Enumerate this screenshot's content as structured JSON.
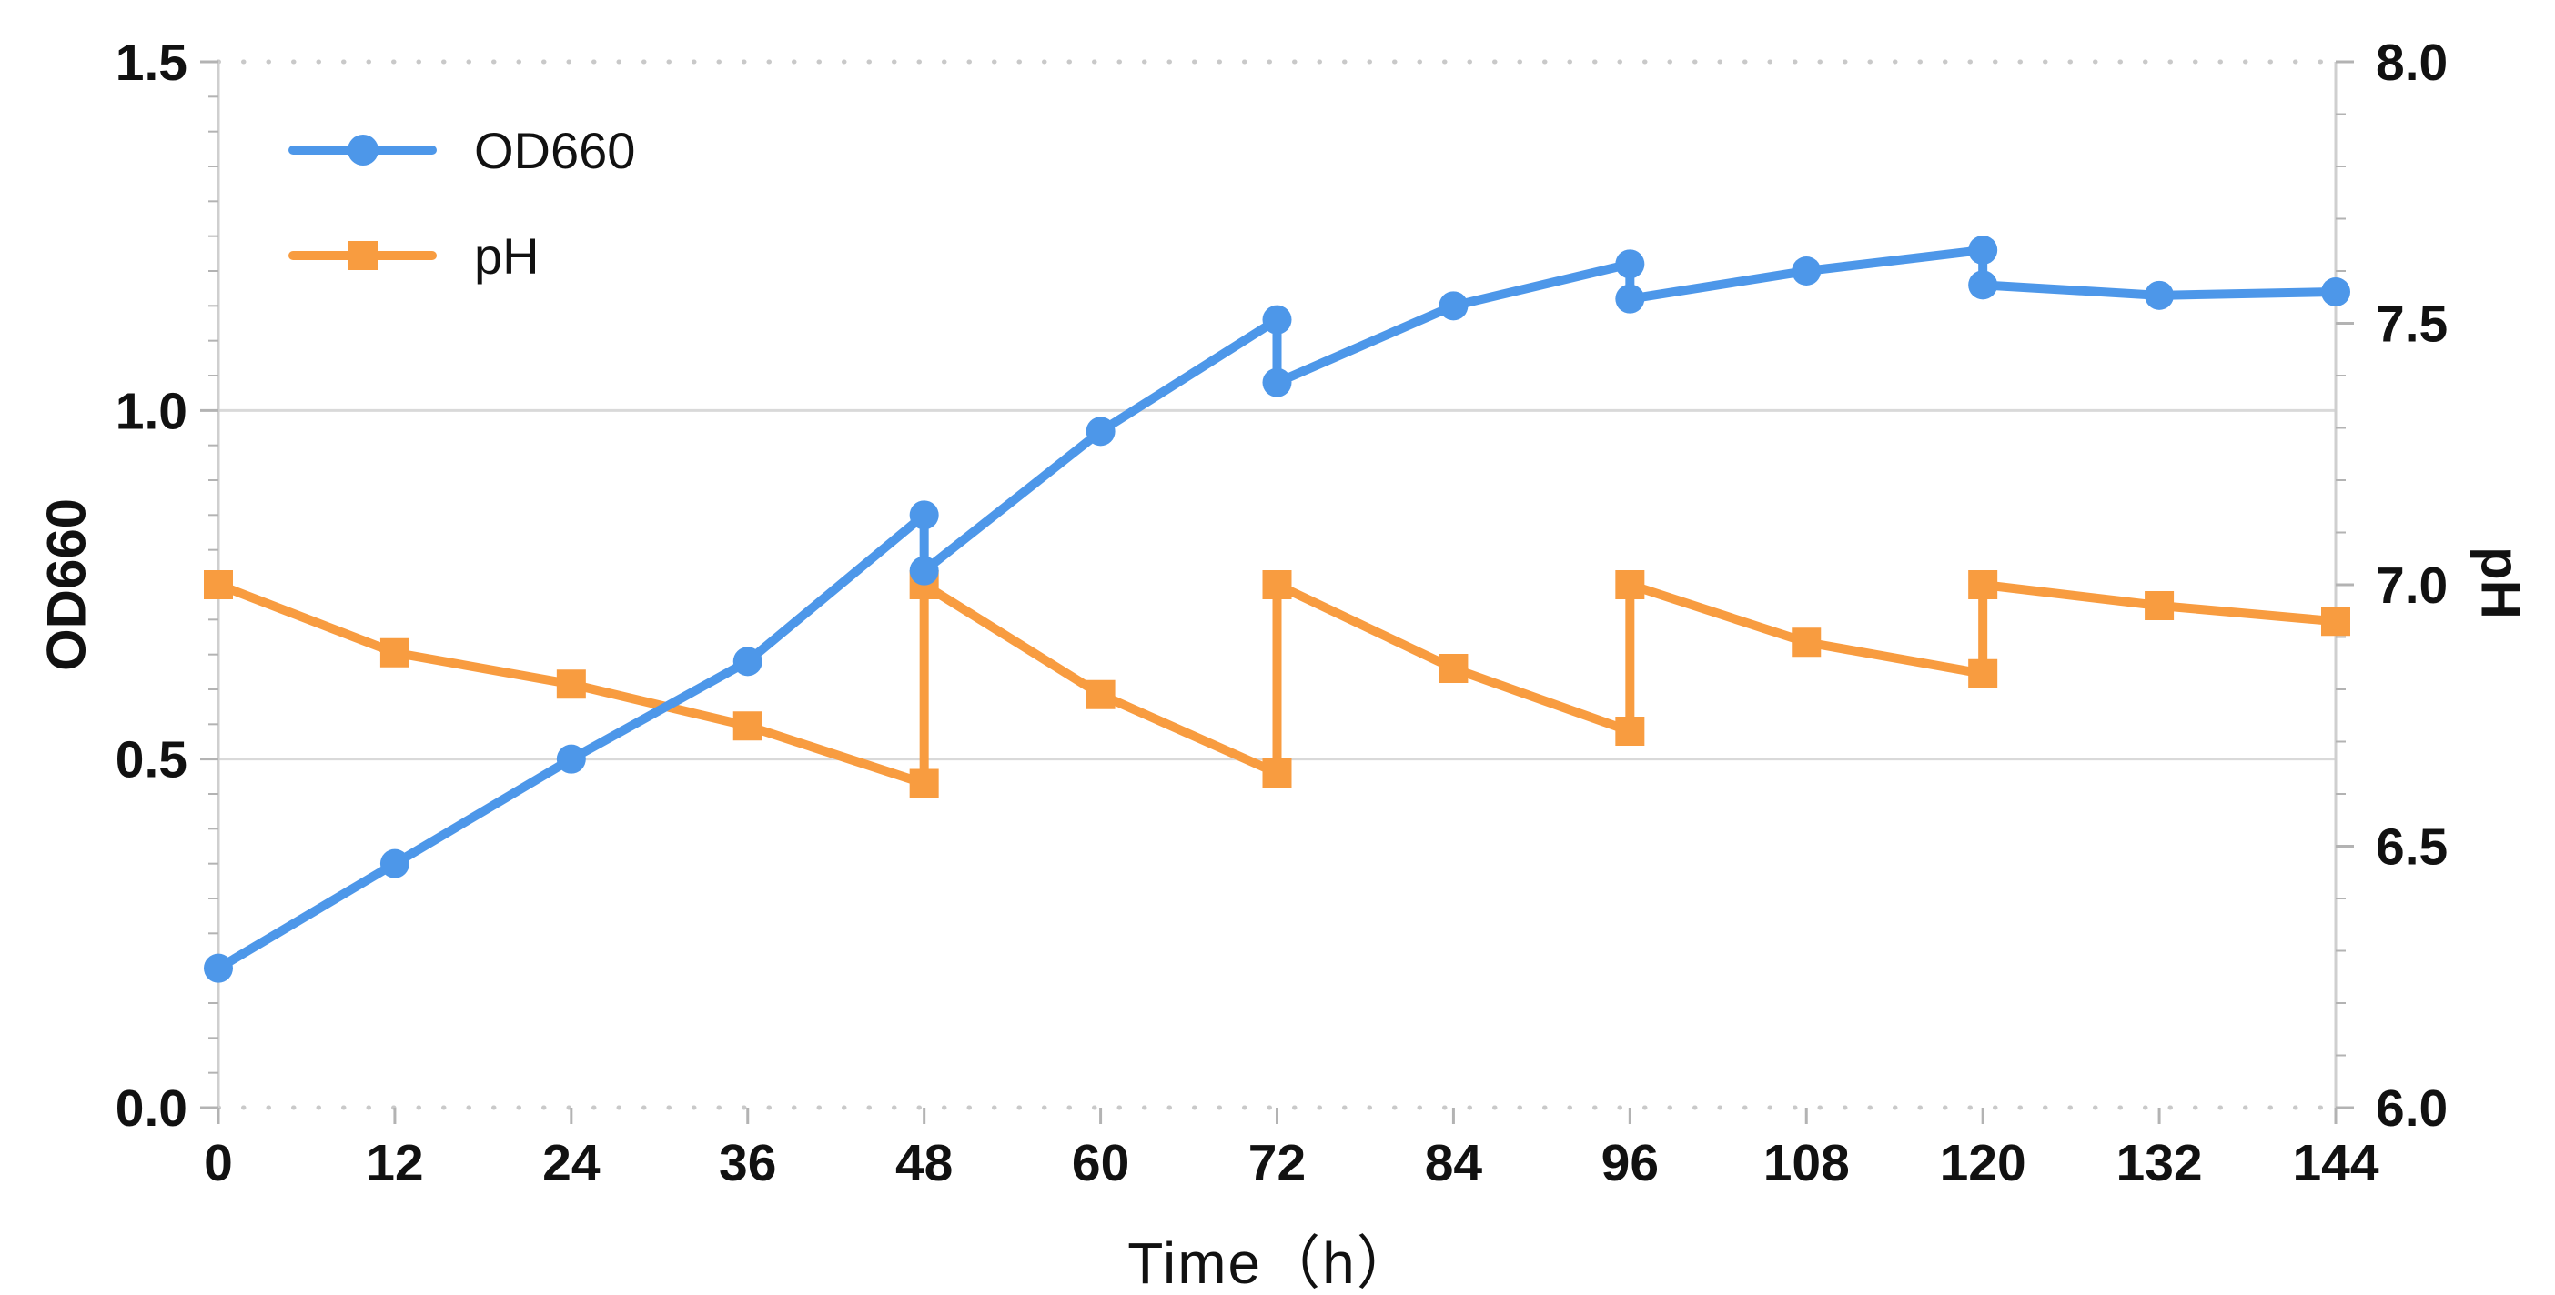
{
  "chart_data": {
    "type": "line",
    "title": "",
    "x": {
      "label": "Time（h）",
      "min": 0,
      "max": 144,
      "major_tick_values": [
        0,
        12,
        24,
        36,
        48,
        60,
        72,
        84,
        96,
        108,
        120,
        132,
        144
      ],
      "major_tick_labels": [
        "0",
        "12",
        "24",
        "36",
        "48",
        "60",
        "72",
        "84",
        "96",
        "108",
        "120",
        "132",
        "144"
      ]
    },
    "y_left": {
      "label": "OD660",
      "min": 0.0,
      "max": 1.5,
      "major_tick_values": [
        0.0,
        0.5,
        1.0,
        1.5
      ],
      "major_tick_labels": [
        "0.0",
        "0.5",
        "1.0",
        "1.5"
      ],
      "minor_step": 0.05,
      "solid_gridlines": [
        0.5,
        1.0
      ],
      "dotted_gridlines": [
        0.0,
        1.5
      ]
    },
    "y_right": {
      "label": "pH",
      "min": 6.0,
      "max": 8.0,
      "major_tick_values": [
        6.0,
        6.5,
        7.0,
        7.5,
        8.0
      ],
      "major_tick_labels": [
        "6.0",
        "6.5",
        "7.0",
        "7.5",
        "8.0"
      ],
      "minor_step": 0.1
    },
    "legend": {
      "position": "top-left",
      "items": [
        {
          "label": "OD660",
          "marker": "circle",
          "color": "#4D97E9"
        },
        {
          "label": "pH",
          "marker": "square",
          "color": "#F89C40"
        }
      ]
    },
    "series": [
      {
        "name": "pH",
        "axis": "right",
        "color": "#F89C40",
        "marker": "square",
        "points": [
          [
            0,
            7.0
          ],
          [
            12,
            6.87
          ],
          [
            24,
            6.81
          ],
          [
            36,
            6.73
          ],
          [
            48,
            6.62
          ],
          [
            48,
            7.0
          ],
          [
            60,
            6.79
          ],
          [
            72,
            6.64
          ],
          [
            72,
            7.0
          ],
          [
            84,
            6.84
          ],
          [
            96,
            6.72
          ],
          [
            96,
            7.0
          ],
          [
            108,
            6.89
          ],
          [
            120,
            6.83
          ],
          [
            120,
            7.0
          ],
          [
            132,
            6.96
          ],
          [
            144,
            6.93
          ]
        ]
      },
      {
        "name": "OD660",
        "axis": "left",
        "color": "#4D97E9",
        "marker": "circle",
        "points": [
          [
            0,
            0.2
          ],
          [
            12,
            0.35
          ],
          [
            24,
            0.5
          ],
          [
            36,
            0.64
          ],
          [
            48,
            0.85
          ],
          [
            48,
            0.77
          ],
          [
            60,
            0.97
          ],
          [
            72,
            1.13
          ],
          [
            72,
            1.04
          ],
          [
            84,
            1.15
          ],
          [
            96,
            1.21
          ],
          [
            96,
            1.16
          ],
          [
            108,
            1.2
          ],
          [
            120,
            1.23
          ],
          [
            120,
            1.18
          ],
          [
            132,
            1.165
          ],
          [
            144,
            1.17
          ]
        ]
      }
    ],
    "style_colors": {
      "solid_gridline": "#D9D9D9",
      "dotted_gridline": "#C9C9C9",
      "spine": "#CFCFCF",
      "tick": "#B3B3B3",
      "tick_label": "#111111"
    }
  }
}
